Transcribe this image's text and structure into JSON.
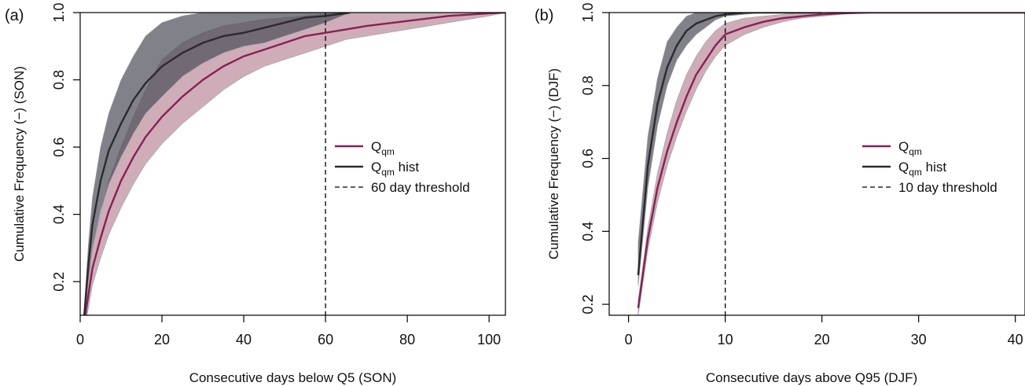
{
  "colors": {
    "qqm": "#8b1f54",
    "qqm_band": "#b07a8d",
    "hist": "#2b2b2e",
    "hist_band": "#4a4b57",
    "axis": "#000000"
  },
  "chart_data": [
    {
      "panel_label": "(a)",
      "type": "line",
      "xlabel": "Consecutive days below Q5 (SON)",
      "ylabel": "Cumulative Frequency (−) (SON)",
      "xlim": [
        0,
        104
      ],
      "ylim": [
        0.1,
        1.0
      ],
      "xticks": [
        "0",
        "20",
        "40",
        "60",
        "80",
        "100"
      ],
      "yticks": [
        "0.2",
        "0.4",
        "0.6",
        "0.8",
        "1.0"
      ],
      "grid": false,
      "legend_position": "right-center",
      "threshold": {
        "x": 60,
        "label": "60 day threshold"
      },
      "series": [
        {
          "name": "Q",
          "name_sub": "qm",
          "kind": "qqm",
          "x": [
            1,
            2,
            3,
            5,
            7,
            10,
            13,
            16,
            20,
            25,
            30,
            35,
            40,
            45,
            50,
            55,
            60,
            65,
            70,
            80,
            90,
            100,
            104
          ],
          "y": [
            0.08,
            0.16,
            0.24,
            0.33,
            0.41,
            0.5,
            0.57,
            0.63,
            0.69,
            0.75,
            0.8,
            0.84,
            0.87,
            0.89,
            0.91,
            0.93,
            0.94,
            0.95,
            0.96,
            0.975,
            0.99,
            0.998,
            1.0
          ],
          "lower": [
            0.05,
            0.12,
            0.19,
            0.27,
            0.34,
            0.42,
            0.49,
            0.55,
            0.61,
            0.67,
            0.72,
            0.77,
            0.81,
            0.84,
            0.86,
            0.88,
            0.9,
            0.92,
            0.93,
            0.95,
            0.97,
            0.99,
            1.0
          ],
          "upper": [
            0.11,
            0.21,
            0.3,
            0.4,
            0.5,
            0.6,
            0.69,
            0.77,
            0.86,
            0.91,
            0.94,
            0.96,
            0.97,
            0.98,
            0.985,
            0.99,
            0.995,
            1.0,
            1.0,
            1.0,
            1.0,
            1.0,
            1.0
          ]
        },
        {
          "name": "Q",
          "name_sub": "qm",
          "name_suffix": " hist",
          "kind": "hist",
          "x": [
            1,
            2,
            3,
            5,
            7,
            10,
            13,
            16,
            20,
            25,
            30,
            35,
            40,
            45,
            50,
            55,
            60,
            66
          ],
          "y": [
            0.1,
            0.25,
            0.37,
            0.5,
            0.59,
            0.67,
            0.74,
            0.79,
            0.84,
            0.88,
            0.91,
            0.93,
            0.94,
            0.955,
            0.97,
            0.985,
            0.99,
            1.0
          ],
          "lower": [
            0.08,
            0.2,
            0.3,
            0.41,
            0.49,
            0.57,
            0.64,
            0.7,
            0.75,
            0.81,
            0.85,
            0.88,
            0.9,
            0.91,
            0.93,
            0.95,
            0.97,
            1.0
          ],
          "upper": [
            0.12,
            0.31,
            0.45,
            0.6,
            0.7,
            0.8,
            0.87,
            0.93,
            0.97,
            0.99,
            1.0,
            1.0,
            1.0,
            1.0,
            1.0,
            1.0,
            1.0,
            1.0
          ]
        }
      ]
    },
    {
      "panel_label": "(b)",
      "type": "line",
      "xlabel": "Consecutive days above Q95 (DJF)",
      "ylabel": "Cumulative Frequency (−) (DJF)",
      "xlim": [
        -2,
        41
      ],
      "ylim": [
        0.17,
        1.0
      ],
      "xticks": [
        "0",
        "10",
        "20",
        "30",
        "40"
      ],
      "yticks": [
        "0.2",
        "0.4",
        "0.6",
        "0.8",
        "1.0"
      ],
      "grid": false,
      "legend_position": "right-center",
      "threshold": {
        "x": 10,
        "label": "10 day threshold"
      },
      "series": [
        {
          "name": "Q",
          "name_sub": "qm",
          "kind": "qqm",
          "x": [
            1,
            2,
            3,
            4,
            5,
            6,
            7,
            8,
            9,
            10,
            12,
            14,
            16,
            18,
            20,
            22,
            25,
            30,
            35,
            40,
            41
          ],
          "y": [
            0.19,
            0.38,
            0.52,
            0.62,
            0.7,
            0.77,
            0.83,
            0.87,
            0.91,
            0.94,
            0.96,
            0.975,
            0.985,
            0.99,
            0.995,
            0.998,
            1.0,
            1.0,
            1.0,
            1.0,
            1.0
          ],
          "lower": [
            0.17,
            0.35,
            0.48,
            0.58,
            0.66,
            0.73,
            0.79,
            0.84,
            0.88,
            0.91,
            0.94,
            0.96,
            0.975,
            0.985,
            0.99,
            0.995,
            1.0,
            1.0,
            1.0,
            1.0,
            1.0
          ],
          "upper": [
            0.21,
            0.41,
            0.56,
            0.67,
            0.76,
            0.83,
            0.88,
            0.92,
            0.95,
            0.97,
            0.985,
            0.99,
            0.995,
            1.0,
            1.0,
            1.0,
            1.0,
            1.0,
            1.0,
            1.0,
            1.0
          ]
        },
        {
          "name": "Q",
          "name_sub": "qm",
          "name_suffix": " hist",
          "kind": "hist",
          "x": [
            1,
            2,
            3,
            4,
            5,
            6,
            7,
            8,
            9,
            10,
            12,
            14,
            16,
            20
          ],
          "y": [
            0.28,
            0.58,
            0.75,
            0.85,
            0.91,
            0.95,
            0.97,
            0.98,
            0.99,
            0.995,
            1.0,
            1.0,
            1.0,
            1.0
          ],
          "lower": [
            0.25,
            0.52,
            0.69,
            0.8,
            0.87,
            0.91,
            0.94,
            0.96,
            0.98,
            0.99,
            0.995,
            1.0,
            1.0,
            1.0
          ],
          "upper": [
            0.37,
            0.66,
            0.82,
            0.92,
            0.96,
            0.99,
            1.0,
            1.0,
            1.0,
            1.0,
            1.0,
            1.0,
            1.0,
            1.0
          ]
        }
      ]
    }
  ]
}
